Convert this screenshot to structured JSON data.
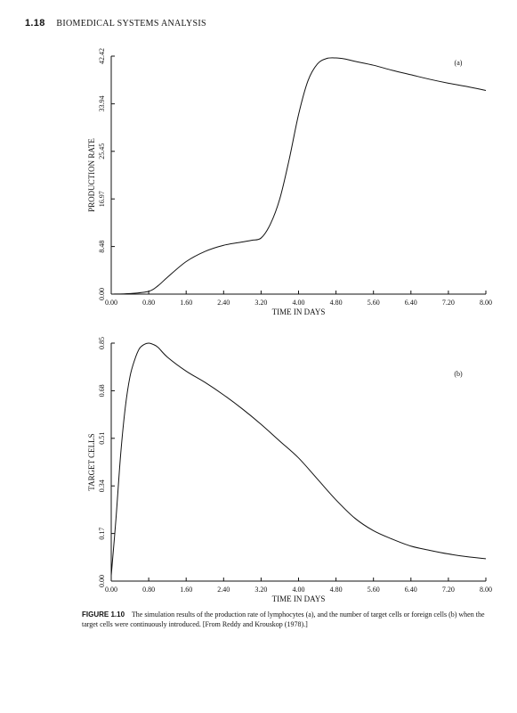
{
  "header": {
    "page_number": "1.18",
    "running_title": "BIOMEDICAL SYSTEMS ANALYSIS"
  },
  "chart_data": [
    {
      "type": "line",
      "panel_label": "(a)",
      "xlabel": "TIME IN DAYS",
      "ylabel": "PRODUCTION RATE",
      "x_ticks": [
        "0.00",
        "0.80",
        "1.60",
        "2.40",
        "3.20",
        "4.00",
        "4.80",
        "5.60",
        "6.40",
        "7.20",
        "8.00"
      ],
      "y_ticks": [
        "0.00",
        "8.48",
        "16.97",
        "25.45",
        "33.94",
        "42.42"
      ],
      "xlim": [
        0,
        8
      ],
      "ylim": [
        0,
        42.42
      ],
      "grid": false,
      "series": [
        {
          "x": [
            0.0,
            0.4,
            0.8,
            1.0,
            1.2,
            1.6,
            2.0,
            2.4,
            2.8,
            3.0,
            3.2,
            3.4,
            3.6,
            3.8,
            4.0,
            4.2,
            4.4,
            4.6,
            4.8,
            5.0,
            5.2,
            5.6,
            6.0,
            6.4,
            6.8,
            7.2,
            7.6,
            8.0
          ],
          "y": [
            0.0,
            0.1,
            0.5,
            1.5,
            3.0,
            5.8,
            7.6,
            8.7,
            9.3,
            9.6,
            10.0,
            12.5,
            17.0,
            24.0,
            32.0,
            38.0,
            41.0,
            42.0,
            42.1,
            41.9,
            41.5,
            40.8,
            39.9,
            39.1,
            38.3,
            37.6,
            37.0,
            36.3
          ]
        }
      ]
    },
    {
      "type": "line",
      "panel_label": "(b)",
      "xlabel": "TIME IN DAYS",
      "ylabel": "TARGET CELLS",
      "x_ticks": [
        "0.00",
        "0.80",
        "1.60",
        "2.40",
        "3.20",
        "4.00",
        "4.80",
        "5.60",
        "6.40",
        "7.20",
        "8.00"
      ],
      "y_ticks": [
        "0.00",
        "0.17",
        "0.34",
        "0.51",
        "0.68",
        "0.85"
      ],
      "xlim": [
        0,
        8
      ],
      "ylim": [
        0,
        0.85
      ],
      "grid": false,
      "series": [
        {
          "x": [
            0.0,
            0.1,
            0.2,
            0.3,
            0.4,
            0.5,
            0.6,
            0.7,
            0.8,
            0.9,
            1.0,
            1.2,
            1.6,
            2.0,
            2.4,
            2.8,
            3.2,
            3.6,
            4.0,
            4.4,
            4.8,
            5.2,
            5.6,
            6.0,
            6.4,
            6.8,
            7.2,
            7.6,
            8.0
          ],
          "y": [
            0.02,
            0.22,
            0.45,
            0.62,
            0.73,
            0.79,
            0.83,
            0.845,
            0.85,
            0.845,
            0.835,
            0.8,
            0.75,
            0.71,
            0.665,
            0.615,
            0.56,
            0.5,
            0.44,
            0.365,
            0.29,
            0.225,
            0.18,
            0.15,
            0.125,
            0.11,
            0.097,
            0.087,
            0.08
          ]
        }
      ]
    }
  ],
  "caption": {
    "label": "FIGURE 1.10",
    "text": "The simulation results of the production rate of lymphocytes (a), and the number of target cells or foreign cells (b) when the target cells were continuously introduced. [From Reddy and Krouskop (1978).]"
  }
}
